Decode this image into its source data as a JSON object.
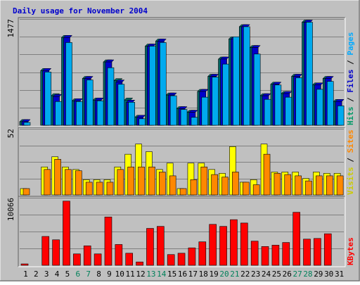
{
  "chart_data": {
    "type": "bar",
    "title": "Daily usage for November 2004",
    "categories": [
      "1",
      "2",
      "3",
      "4",
      "5",
      "6",
      "7",
      "8",
      "9",
      "10",
      "11",
      "12",
      "13",
      "14",
      "15",
      "16",
      "17",
      "18",
      "19",
      "20",
      "21",
      "22",
      "23",
      "24",
      "25",
      "26",
      "27",
      "28",
      "29",
      "30",
      "31"
    ],
    "weekend_days": [
      "6",
      "7",
      "13",
      "14",
      "20",
      "21",
      "27",
      "28"
    ],
    "panels": [
      {
        "id": "top",
        "ymax_label": "1477",
        "ylim": [
          0,
          1477
        ],
        "side_labels": [
          {
            "text": "Hits",
            "color": "#009966"
          },
          {
            "text": " / ",
            "color": "#000000"
          },
          {
            "text": "Files",
            "color": "#0000cc"
          },
          {
            "text": " / ",
            "color": "#000000"
          },
          {
            "text": "Pages",
            "color": "#00aaff"
          }
        ],
        "series": [
          {
            "name": "Hits",
            "color": "#006666",
            "values": [
              50,
              0,
              760,
              410,
              1220,
              340,
              650,
              350,
              880,
              620,
              350,
              110,
              1100,
              1170,
              420,
              230,
              180,
              470,
              680,
              920,
              1200,
              1370,
              1080,
              410,
              570,
              440,
              680,
              1470,
              560,
              650,
              330
            ]
          },
          {
            "name": "Files",
            "color": "#0000cc",
            "values": [
              50,
              0,
              760,
              400,
              1220,
              340,
              650,
              350,
              880,
              600,
              320,
              110,
              1100,
              1170,
              420,
              230,
              180,
              470,
              680,
              920,
              1200,
              1370,
              1080,
              410,
              570,
              440,
              680,
              1470,
              560,
              650,
              330
            ]
          },
          {
            "name": "Pages",
            "color": "#00aaee",
            "values": [
              40,
              0,
              740,
              330,
              1150,
              330,
              630,
              340,
              800,
              570,
              320,
              90,
              1100,
              1150,
              410,
              220,
              110,
              390,
              670,
              850,
              1230,
              1370,
              990,
              360,
              560,
              390,
              660,
              1460,
              500,
              610,
              270
            ]
          }
        ]
      },
      {
        "id": "middle",
        "ymax_label": "52",
        "ylim": [
          0,
          52
        ],
        "side_labels": [
          {
            "text": "Visits",
            "color": "#cccc00"
          },
          {
            "text": " / ",
            "color": "#000000"
          },
          {
            "text": "Sites",
            "color": "#ff8800"
          }
        ],
        "series": [
          {
            "name": "Visits",
            "color": "#ffff00",
            "values": [
              5,
              0,
              22,
              30,
              22,
              20,
              12,
              12,
              12,
              22,
              32,
              40,
              34,
              20,
              25,
              5,
              25,
              25,
              20,
              17,
              38,
              10,
              12,
              40,
              18,
              18,
              18,
              13,
              18,
              17,
              17
            ]
          },
          {
            "name": "Sites",
            "color": "#ff8800",
            "values": [
              5,
              0,
              20,
              28,
              20,
              19,
              10,
              10,
              10,
              20,
              22,
              22,
              22,
              18,
              15,
              5,
              12,
              22,
              16,
              14,
              18,
              10,
              8,
              32,
              17,
              16,
              15,
              11,
              15,
              15,
              15
            ]
          }
        ]
      },
      {
        "id": "bottom",
        "ymax_label": "10066",
        "ylim": [
          0,
          10066
        ],
        "side_labels": [
          {
            "text": "KBytes",
            "color": "#ff0000"
          }
        ],
        "series": [
          {
            "name": "KBytes",
            "color": "#ff0000",
            "values": [
              200,
              0,
              4300,
              3800,
              9800,
              1700,
              2900,
              1700,
              7200,
              3100,
              1800,
              500,
              5500,
              5800,
              1600,
              1800,
              2600,
              3500,
              6100,
              5800,
              6800,
              6300,
              3600,
              2800,
              3000,
              3400,
              7900,
              3900,
              4000,
              4700,
              0
            ]
          }
        ]
      }
    ]
  },
  "colors": {
    "background": "#c0c0c0",
    "frame_light": "#ffffff",
    "frame_dark": "#808080",
    "gridline": "#808080",
    "title": "#0000cc",
    "weekday_label": "#000000",
    "weekend_label": "#00805a"
  }
}
